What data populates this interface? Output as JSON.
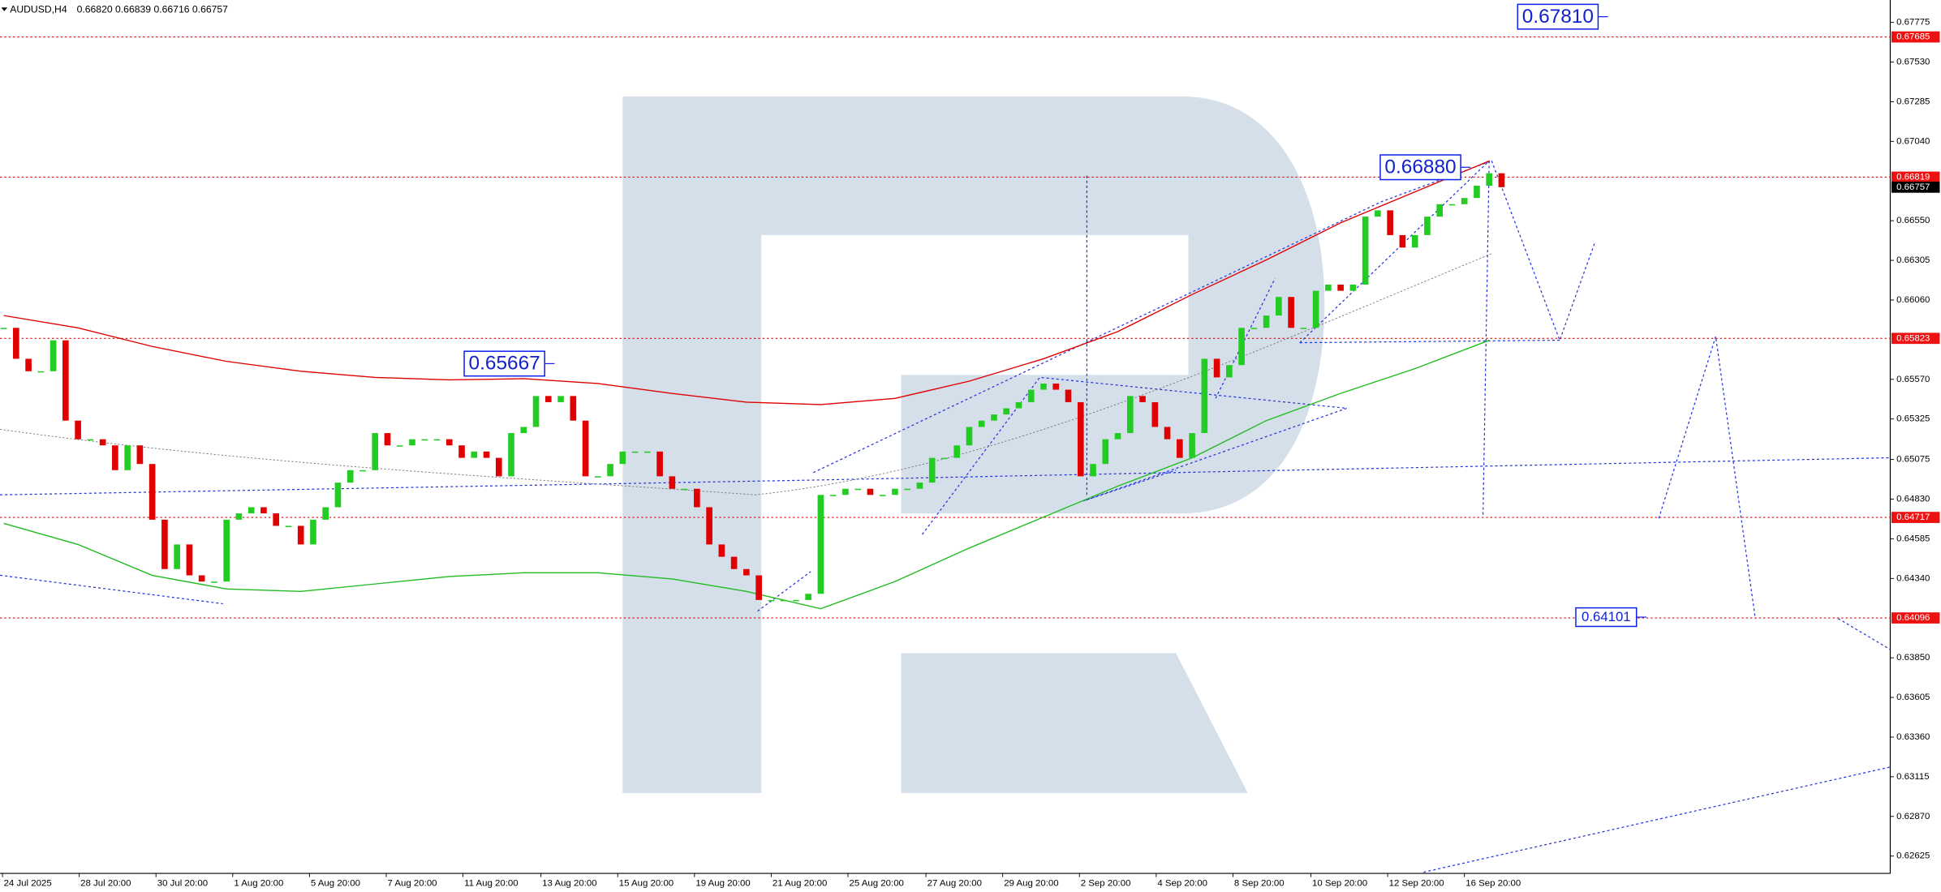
{
  "chart_data": {
    "type": "candlestick",
    "title": "AUDUSD,H4",
    "subtitle": "0.66820 0.66839 0.66716 0.66757",
    "up_color": "#22cc22",
    "down_color": "#e00000",
    "values": [
      0.65888,
      0.65697,
      0.6562,
      0.6562,
      0.65811,
      0.65315,
      0.652,
      0.652,
      0.65162,
      0.65009,
      0.65162,
      0.65047,
      0.64703,
      0.64398,
      0.6455,
      0.64359,
      0.64321,
      0.64321,
      0.64703,
      0.64742,
      0.6478,
      0.64742,
      0.64665,
      0.64665,
      0.6455,
      0.64703,
      0.6478,
      0.64932,
      0.65009,
      0.65009,
      0.65238,
      0.65162,
      0.65162,
      0.652,
      0.652,
      0.652,
      0.65162,
      0.65085,
      0.65124,
      0.65085,
      0.64971,
      0.65238,
      0.65276,
      0.65467,
      0.65429,
      0.65467,
      0.65315,
      0.64971,
      0.64971,
      0.65047,
      0.65124,
      0.65124,
      0.65124,
      0.64971,
      0.64894,
      0.64894,
      0.6478,
      0.6455,
      0.64474,
      0.64398,
      0.64359,
      0.64207,
      0.64207,
      0.64207,
      0.64207,
      0.64245,
      0.64856,
      0.64856,
      0.64894,
      0.64894,
      0.64856,
      0.64856,
      0.64894,
      0.64894,
      0.64932,
      0.65085,
      0.65085,
      0.65162,
      0.65276,
      0.65315,
      0.65353,
      0.65391,
      0.65429,
      0.65506,
      0.65544,
      0.65506,
      0.65429,
      0.64971,
      0.65047,
      0.652,
      0.65238,
      0.65467,
      0.65429,
      0.65276,
      0.652,
      0.65085,
      0.65238,
      0.65697,
      0.65582,
      0.65658,
      0.65888,
      0.65888,
      0.65964,
      0.66079,
      0.65888,
      0.65888,
      0.66117,
      0.66155,
      0.66117,
      0.66155,
      0.66575,
      0.66614,
      0.66461,
      0.66384,
      0.66461,
      0.66575,
      0.66652,
      0.66652,
      0.6669,
      0.66766,
      0.66843,
      0.66757
    ],
    "overlays": [
      {
        "color": "#e00000",
        "x": [
          0,
          6,
          12,
          18,
          24,
          30,
          36,
          42,
          48,
          54,
          60,
          66,
          72,
          78,
          84,
          90,
          96,
          102,
          108,
          114,
          120
        ],
        "values": [
          0.65964,
          0.65888,
          0.65773,
          0.65681,
          0.6562,
          0.65582,
          0.65567,
          0.65574,
          0.65544,
          0.65483,
          0.65429,
          0.65414,
          0.65452,
          0.65559,
          0.65697,
          0.65865,
          0.66094,
          0.66308,
          0.66537,
          0.66728,
          0.66919
        ]
      },
      {
        "color": "#22bb22",
        "x": [
          0,
          6,
          12,
          18,
          24,
          30,
          36,
          42,
          48,
          54,
          60,
          66,
          72,
          78,
          84,
          90,
          96,
          102,
          108,
          114,
          120
        ],
        "values": [
          0.6468,
          0.6455,
          0.64359,
          0.64275,
          0.6426,
          0.64306,
          0.64352,
          0.64375,
          0.64375,
          0.64337,
          0.6426,
          0.64153,
          0.64321,
          0.64528,
          0.64719,
          0.6491,
          0.65085,
          0.65315,
          0.65483,
          0.65636,
          0.65811
        ]
      }
    ],
    "levels": [
      {
        "value": 0.67685,
        "label": "0.67685"
      },
      {
        "value": 0.66819,
        "label": "0.66819"
      },
      {
        "value": 0.65823,
        "label": "0.65823"
      },
      {
        "value": 0.64717,
        "label": "0.64717"
      },
      {
        "value": 0.64096,
        "label": "0.64096"
      }
    ],
    "current": {
      "value": 0.66757,
      "label": "0.66757"
    },
    "annotations": [
      {
        "value": 0.6781,
        "label": "0.67810"
      },
      {
        "value": 0.6688,
        "label": "0.66880"
      },
      {
        "value": 0.65667,
        "label": "0.65667"
      },
      {
        "value": 0.64101,
        "label": "0.64101"
      }
    ],
    "ylim": [
      0.62518,
      0.67913
    ],
    "yticks": [
      0.67775,
      {
        "value": 0.6753,
        "label": "0.67530"
      },
      0.67285,
      {
        "value": 0.6704,
        "label": "0.67040"
      },
      {
        "value": 0.6655,
        "label": "0.66550"
      },
      0.66305,
      {
        "value": 0.6606,
        "label": "0.66060"
      },
      {
        "value": 0.6557,
        "label": "0.65570"
      },
      0.65325,
      0.65075,
      {
        "value": 0.6483,
        "label": "0.64830"
      },
      0.64585,
      {
        "value": 0.6434,
        "label": "0.64340"
      },
      {
        "value": 0.6385,
        "label": "0.63850"
      },
      0.63605,
      {
        "value": 0.6336,
        "label": "0.63360"
      },
      0.63115,
      {
        "value": 0.6287,
        "label": "0.62870"
      },
      0.62625
    ],
    "xticks": [
      {
        "value": 0,
        "label": "24 Jul 2025"
      },
      {
        "value": 6.2,
        "label": "28 Jul 20:00"
      },
      {
        "value": 12.4,
        "label": "30 Jul 20:00"
      },
      {
        "value": 18.6,
        "label": "1 Aug 20:00"
      },
      {
        "value": 24.8,
        "label": "5 Aug 20:00"
      },
      {
        "value": 31,
        "label": "7 Aug 20:00"
      },
      {
        "value": 37.2,
        "label": "11 Aug 20:00"
      },
      {
        "value": 43.5,
        "label": "13 Aug 20:00"
      },
      {
        "value": 49.7,
        "label": "15 Aug 20:00"
      },
      {
        "value": 55.9,
        "label": "19 Aug 20:00"
      },
      {
        "value": 62.1,
        "label": "21 Aug 20:00"
      },
      {
        "value": 68.3,
        "label": "25 Aug 20:00"
      },
      {
        "value": 74.6,
        "label": "27 Aug 20:00"
      },
      {
        "value": 80.8,
        "label": "29 Aug 20:00"
      },
      {
        "value": 87,
        "label": "2 Sep 20:00"
      },
      {
        "value": 93.2,
        "label": "4 Sep 20:00"
      },
      {
        "value": 99.4,
        "label": "8 Sep 20:00"
      },
      {
        "value": 105.7,
        "label": "10 Sep 20:00"
      },
      {
        "value": 111.9,
        "label": "12 Sep 20:00"
      },
      {
        "value": 118.1,
        "label": "16 Sep 20:00"
      }
    ]
  }
}
